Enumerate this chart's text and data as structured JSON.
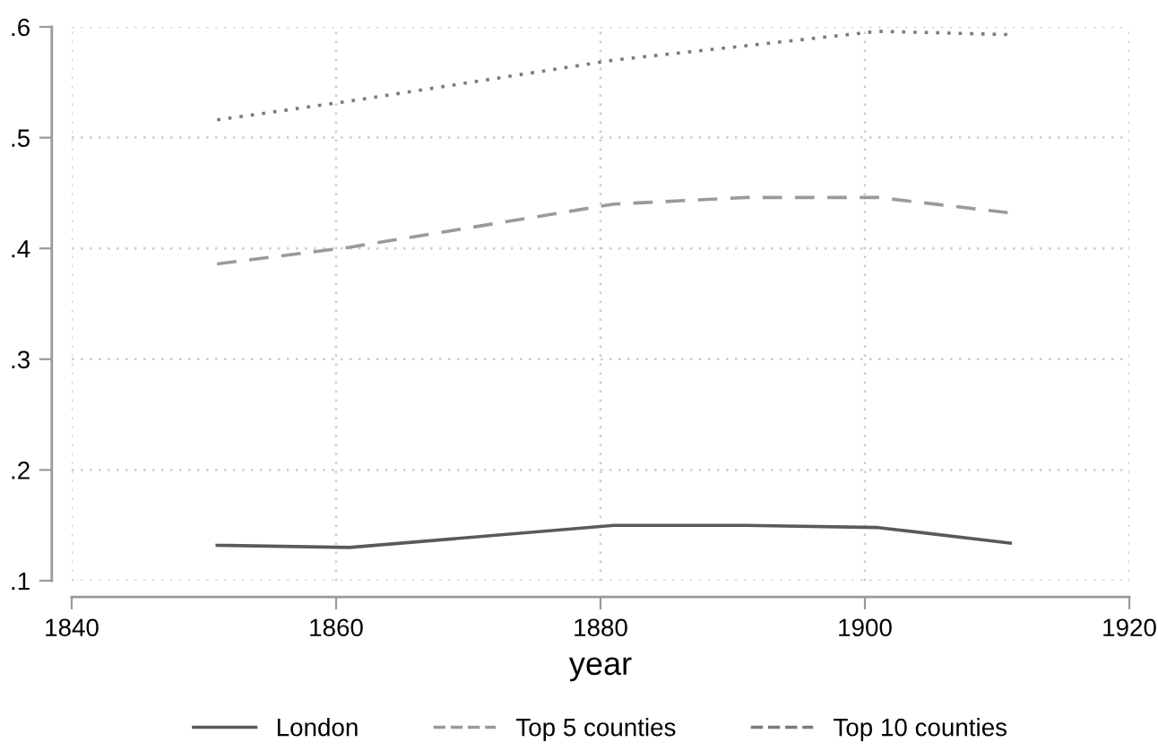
{
  "chart_data": {
    "type": "line",
    "xlabel": "year",
    "x": [
      1851,
      1861,
      1881,
      1891,
      1901,
      1911
    ],
    "series": [
      {
        "name": "London",
        "color": "#5a5a5a",
        "line_style": "solid",
        "values": [
          0.132,
          0.13,
          0.15,
          0.15,
          0.148,
          0.134
        ]
      },
      {
        "name": "Top 5 counties",
        "color": "#9a9a9a",
        "line_style": "dashed",
        "values": [
          0.386,
          0.401,
          0.44,
          0.446,
          0.446,
          0.432
        ]
      },
      {
        "name": "Top 10 counties",
        "color": "#7a7a7a",
        "line_style": "dotted",
        "values": [
          0.516,
          0.533,
          0.57,
          0.583,
          0.596,
          0.593
        ]
      }
    ],
    "xlim": [
      1840,
      1920
    ],
    "xticks": [
      1840,
      1860,
      1880,
      1900,
      1920
    ],
    "ylim": [
      0.1,
      0.6
    ],
    "yticks": [
      {
        "value": 0.1,
        "label": ".1"
      },
      {
        "value": 0.2,
        "label": ".2"
      },
      {
        "value": 0.3,
        "label": ".3"
      },
      {
        "value": 0.4,
        "label": ".4"
      },
      {
        "value": 0.5,
        "label": ".5"
      },
      {
        "value": 0.6,
        "label": ".6"
      }
    ],
    "grid": true,
    "legend": "bottom",
    "marker": "none"
  }
}
